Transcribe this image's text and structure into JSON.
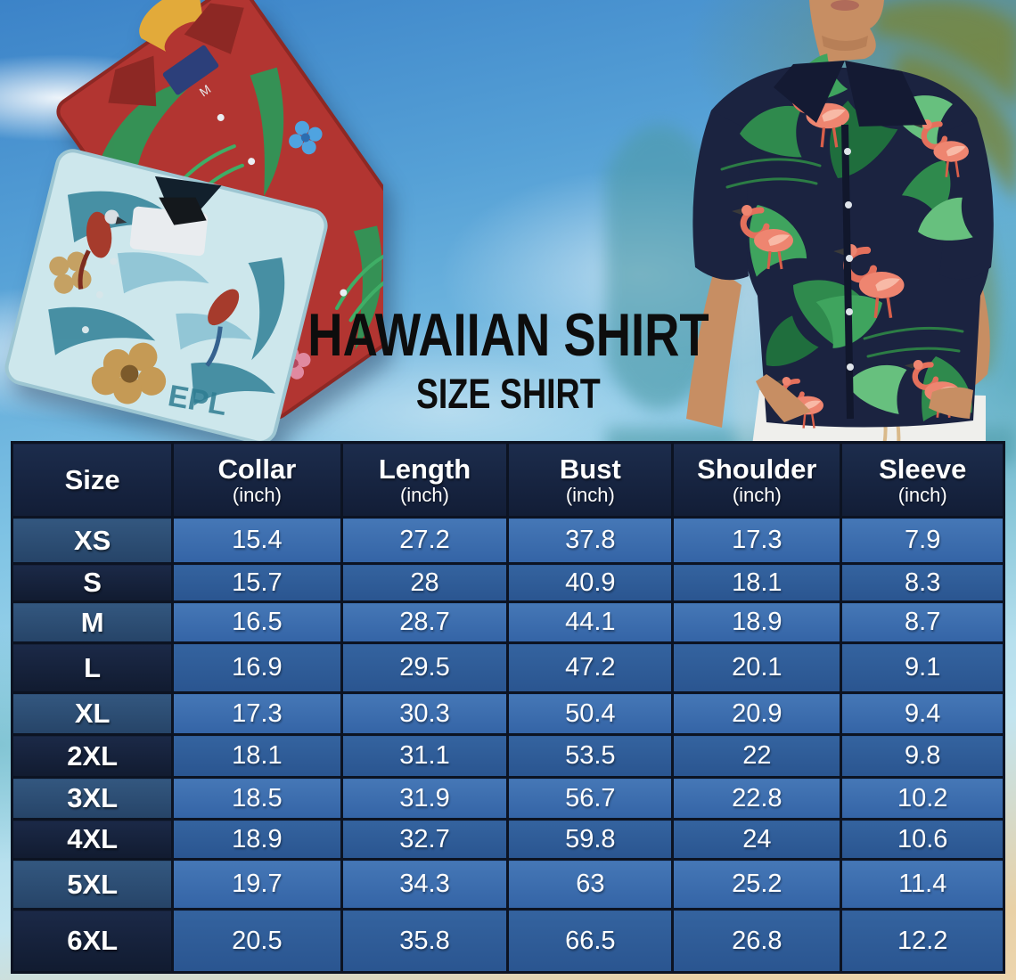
{
  "title": {
    "main": "HAWAIIAN SHIRT",
    "sub": "SIZE SHIRT"
  },
  "photos": {
    "red_shirt_tag": "M",
    "teal_shirt_print": "EPL"
  },
  "chart_data": {
    "type": "table",
    "title": "HAWAIIAN SHIRT SIZE SHIRT",
    "columns": [
      "Size",
      "Collar",
      "Length",
      "Bust",
      "Shoulder",
      "Sleeve"
    ],
    "column_sublabels": [
      "",
      "(inch)",
      "(inch)",
      "(inch)",
      "(inch)",
      "(inch)"
    ],
    "rows": [
      {
        "size": "XS",
        "values": [
          "15.4",
          "27.2",
          "37.8",
          "17.3",
          "7.9"
        ]
      },
      {
        "size": "S",
        "values": [
          "15.7",
          "28",
          "40.9",
          "18.1",
          "8.3"
        ]
      },
      {
        "size": "M",
        "values": [
          "16.5",
          "28.7",
          "44.1",
          "18.9",
          "8.7"
        ]
      },
      {
        "size": "L",
        "values": [
          "16.9",
          "29.5",
          "47.2",
          "20.1",
          "9.1"
        ]
      },
      {
        "size": "XL",
        "values": [
          "17.3",
          "30.3",
          "50.4",
          "20.9",
          "9.4"
        ]
      },
      {
        "size": "2XL",
        "values": [
          "18.1",
          "31.1",
          "53.5",
          "22",
          "9.8"
        ]
      },
      {
        "size": "3XL",
        "values": [
          "18.5",
          "31.9",
          "56.7",
          "22.8",
          "10.2"
        ]
      },
      {
        "size": "4XL",
        "values": [
          "18.9",
          "32.7",
          "59.8",
          "24",
          "10.6"
        ]
      },
      {
        "size": "5XL",
        "values": [
          "19.7",
          "34.3",
          "63",
          "25.2",
          "11.4"
        ]
      },
      {
        "size": "6XL",
        "values": [
          "20.5",
          "35.8",
          "66.5",
          "26.8",
          "12.2"
        ]
      }
    ]
  },
  "colors": {
    "header_bg": "#16233e",
    "label_odd_bg": "#2c4d78",
    "label_even_bg": "#15203a",
    "cell_odd_bg": "#3a6db1",
    "cell_even_bg": "#2d5a97",
    "grid_line": "#0c1322",
    "table_text": "#ffffff",
    "title_text": "#0d0d0d",
    "sand": "#ecd5ae",
    "sky": "#55a0d6",
    "model_shirt_navy": "#1b2340",
    "red_shirt": "#b23531",
    "teal_shirt": "#cde7ec"
  }
}
